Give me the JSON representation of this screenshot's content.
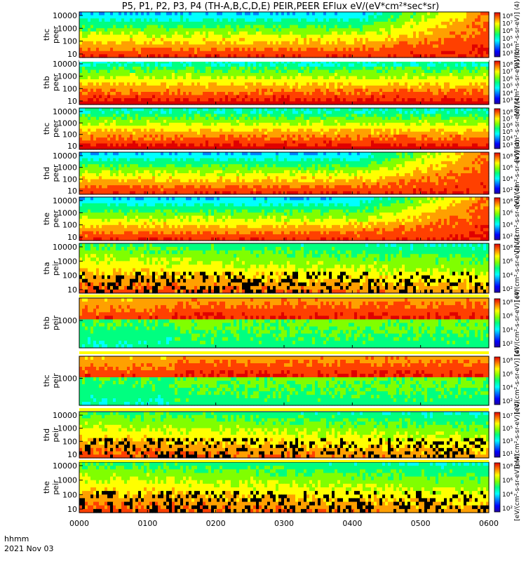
{
  "title": "P5, P1, P2, P3, P4 (TH-A,B,C,D,E) PEIR,PEER EFlux eV/(eV*cm²*sec*sr)",
  "footer": {
    "line1": "hhmm",
    "line2": "2021 Nov 03"
  },
  "colors": {
    "palette": [
      "#2000a0",
      "#0000ff",
      "#0080ff",
      "#00ffff",
      "#00ff80",
      "#80ff00",
      "#ffff00",
      "#ffa000",
      "#ff4000",
      "#e00000"
    ],
    "black_trace": "#000000",
    "flag_red": "#ff0000",
    "flag_yellow": "#ffff00",
    "flag_white": "#ffffff"
  },
  "chart_data": {
    "type": "heatmap",
    "xaxis": {
      "range": [
        "0000",
        "0600"
      ],
      "ticks": [
        "0000",
        "0100",
        "0200",
        "0300",
        "0400",
        "0500",
        "0600"
      ]
    },
    "colorbar_title": "[eV/(cm²-s-sr-eV)] (4)",
    "panels": [
      {
        "ylabel": [
          "thc",
          "peer"
        ],
        "yticks": [
          "10",
          "100",
          "1000",
          "10000"
        ],
        "cbar_ticks": [
          "10⁸",
          "10⁷",
          "10⁶",
          "10⁵",
          "10⁴",
          "10³"
        ]
      },
      {
        "ylabel": [
          "thb",
          "peer"
        ],
        "yticks": [
          "10",
          "100",
          "1000",
          "10000"
        ],
        "cbar_ticks": [
          "10⁸",
          "10⁷",
          "10⁶",
          "10⁵",
          "10⁴",
          "10³"
        ]
      },
      {
        "ylabel": [
          "thc",
          "peer"
        ],
        "yticks": [
          "10",
          "100",
          "1000",
          "10000"
        ],
        "cbar_ticks": [
          "10⁸",
          "10⁷",
          "10⁶",
          "10⁵",
          "10⁴",
          "10³"
        ]
      },
      {
        "ylabel": [
          "thd",
          "peer"
        ],
        "yticks": [
          "10",
          "100",
          "1000",
          "10000"
        ],
        "cbar_ticks": [
          "10⁸",
          "10⁶",
          "10⁴",
          "10²"
        ]
      },
      {
        "ylabel": [
          "the",
          "peer"
        ],
        "yticks": [
          "10",
          "100",
          "1000",
          "10000"
        ],
        "cbar_ticks": [
          "10⁸",
          "10⁶",
          "10⁴",
          "10²"
        ]
      },
      {
        "ylabel": [
          "tha",
          "peir"
        ],
        "yticks": [
          "10",
          "100",
          "1000",
          "10000"
        ],
        "cbar_ticks": [
          "10⁸",
          "10⁶",
          "10⁴",
          "10²"
        ]
      },
      {
        "ylabel": [
          "thb",
          "peir"
        ],
        "yticks": [
          "1000"
        ],
        "cbar_ticks": [
          "10⁸",
          "10⁶",
          "10⁴",
          "10²"
        ]
      },
      {
        "ylabel": [
          "thc",
          "peir"
        ],
        "yticks": [
          "1000"
        ],
        "cbar_ticks": [
          "10⁸",
          "10⁶",
          "10⁴",
          "10²"
        ]
      },
      {
        "ylabel": [
          "thd",
          "peir"
        ],
        "yticks": [
          "10",
          "100",
          "1000",
          "10000"
        ],
        "cbar_ticks": [
          "10⁷",
          "10⁵",
          "10³",
          "10¹"
        ]
      },
      {
        "ylabel": [
          "the",
          "peir"
        ],
        "yticks": [
          "10",
          "100",
          "1000",
          "10000"
        ],
        "cbar_ticks": [
          "10⁸",
          "10⁶",
          "10⁴",
          "10²"
        ]
      }
    ]
  }
}
